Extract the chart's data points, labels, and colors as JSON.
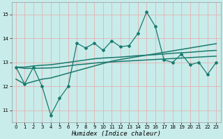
{
  "xlabel": "Humidex (Indice chaleur)",
  "xlim": [
    -0.5,
    23.5
  ],
  "ylim": [
    10.5,
    15.5
  ],
  "yticks": [
    11,
    12,
    13,
    14,
    15
  ],
  "xticks": [
    0,
    1,
    2,
    3,
    4,
    5,
    6,
    7,
    8,
    9,
    10,
    11,
    12,
    13,
    14,
    15,
    16,
    17,
    18,
    19,
    20,
    21,
    22,
    23
  ],
  "background_color": "#c8ecea",
  "grid_color": "#e8a8a8",
  "line_color": "#1a7a6e",
  "main_series": [
    12.8,
    12.1,
    12.8,
    12.0,
    10.8,
    11.5,
    12.0,
    13.8,
    13.6,
    13.8,
    13.5,
    13.9,
    13.65,
    13.7,
    14.2,
    15.1,
    14.5,
    13.1,
    13.0,
    13.35,
    12.9,
    13.0,
    12.5,
    13.0
  ],
  "trend_upper": [
    12.8,
    12.8,
    12.85,
    12.88,
    12.9,
    12.95,
    13.0,
    13.05,
    13.1,
    13.15,
    13.18,
    13.2,
    13.22,
    13.25,
    13.28,
    13.3,
    13.32,
    13.35,
    13.38,
    13.4,
    13.42,
    13.45,
    13.48,
    13.5
  ],
  "trend_mid": [
    12.8,
    12.75,
    12.75,
    12.76,
    12.77,
    12.8,
    12.85,
    12.9,
    12.93,
    12.97,
    13.0,
    13.02,
    13.04,
    13.06,
    13.08,
    13.1,
    13.12,
    13.14,
    13.16,
    13.18,
    13.2,
    13.22,
    13.24,
    13.26
  ],
  "trend_lower": [
    12.3,
    12.1,
    12.2,
    12.3,
    12.35,
    12.45,
    12.55,
    12.65,
    12.75,
    12.85,
    12.95,
    13.05,
    13.12,
    13.18,
    13.24,
    13.3,
    13.36,
    13.42,
    13.48,
    13.54,
    13.6,
    13.66,
    13.72,
    13.78
  ],
  "marker_style": "D",
  "marker_size": 2.0,
  "lw_main": 0.9,
  "lw_trend": 1.1
}
